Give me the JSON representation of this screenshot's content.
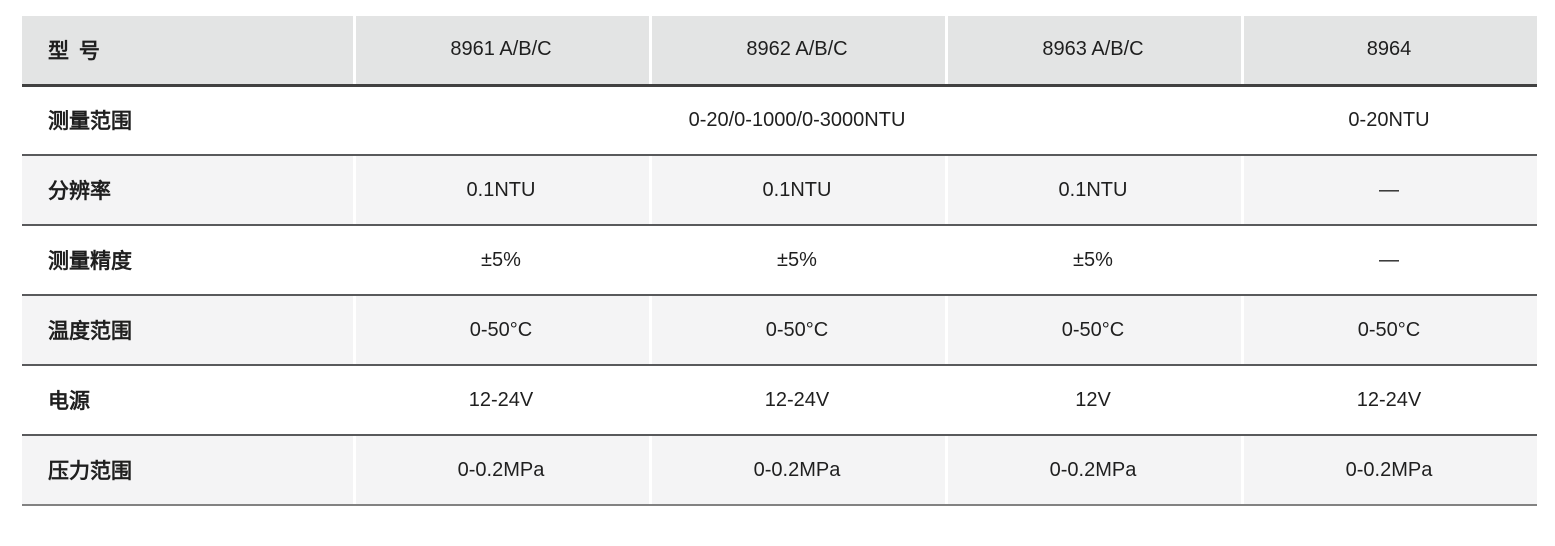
{
  "colors": {
    "header_bg": "#e3e4e4",
    "stripe_bg": "#f4f4f5",
    "divider": "#ffffff",
    "header_line": "#414141",
    "row_line": "#595a5c",
    "bottom_line": "#828282",
    "text": "#1f1f1f",
    "page_bg": "#ffffff"
  },
  "table": {
    "header": {
      "label": "型 号",
      "models": [
        "8961 A/B/C",
        "8962 A/B/C",
        "8963 A/B/C",
        "8964"
      ]
    },
    "rows": [
      {
        "label": "测量范围",
        "span_value": "0-20/0-1000/0-3000NTU",
        "col4_value": "0-20NTU"
      },
      {
        "label": "分辨率",
        "values": [
          "0.1NTU",
          "0.1NTU",
          "0.1NTU",
          "—"
        ]
      },
      {
        "label": "测量精度",
        "values": [
          "±5%",
          "±5%",
          "±5%",
          "—"
        ]
      },
      {
        "label": "温度范围",
        "values": [
          "0-50°C",
          "0-50°C",
          "0-50°C",
          "0-50°C"
        ]
      },
      {
        "label": "电源",
        "values": [
          "12-24V",
          "12-24V",
          "12V",
          "12-24V"
        ]
      },
      {
        "label": "压力范围",
        "values": [
          "0-0.2MPa",
          "0-0.2MPa",
          "0-0.2MPa",
          "0-0.2MPa"
        ]
      }
    ]
  }
}
